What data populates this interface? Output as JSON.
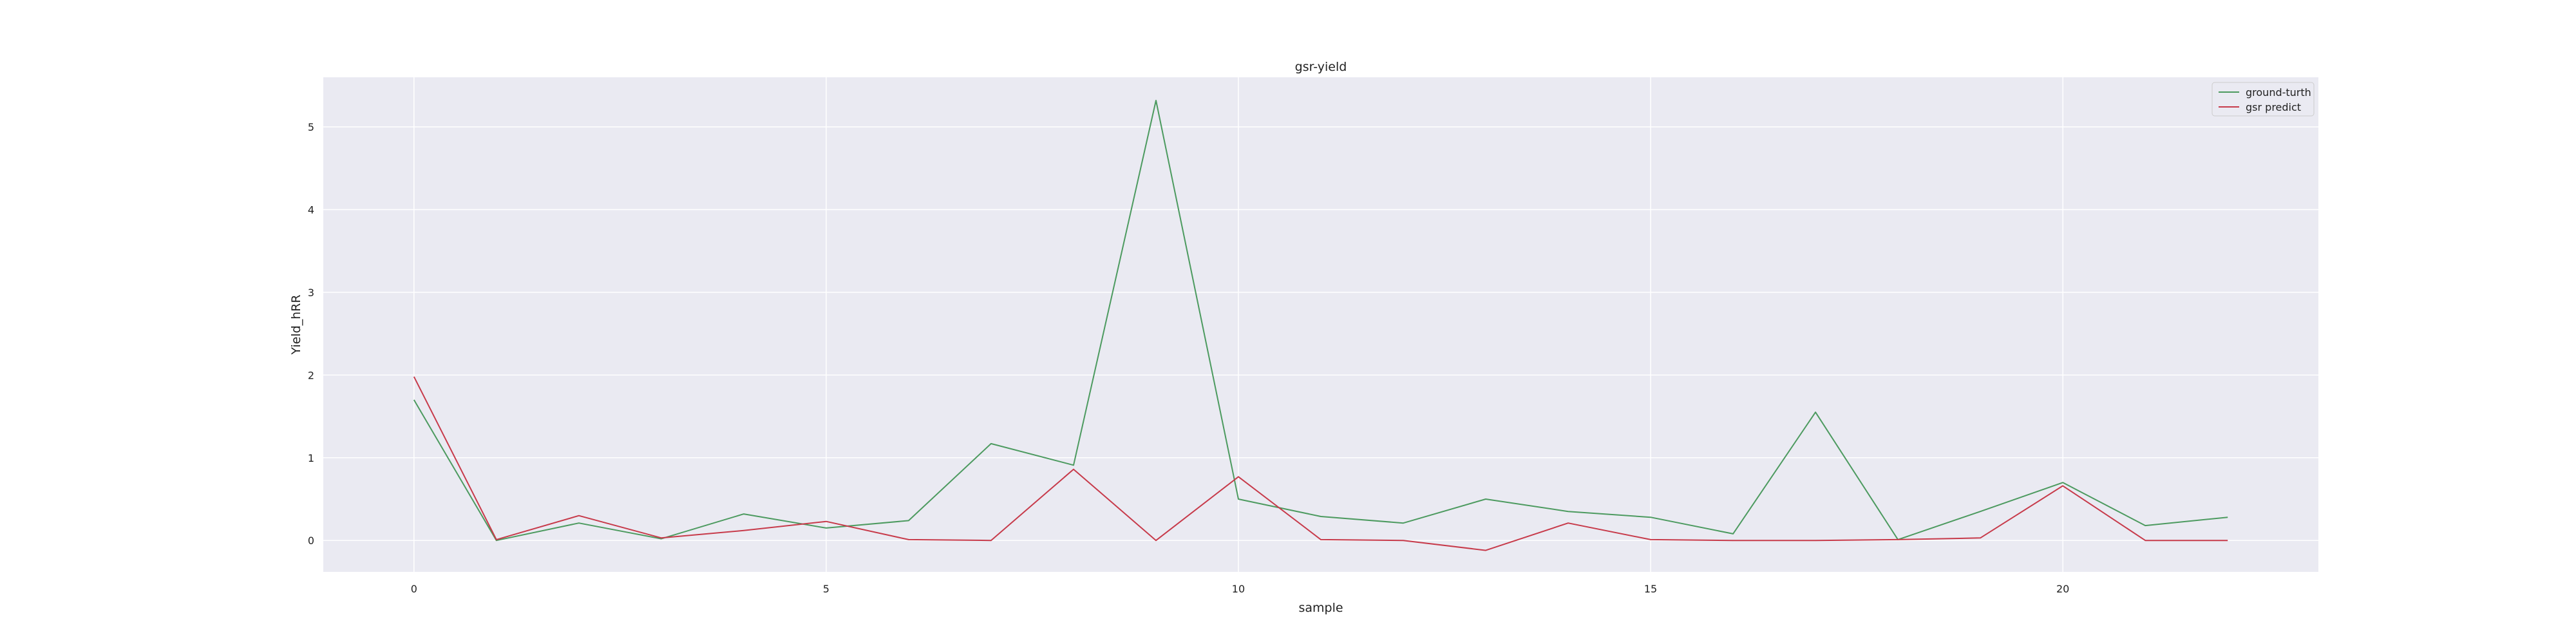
{
  "chart_data": {
    "type": "line",
    "title": "gsr-yield",
    "xlabel": "sample",
    "ylabel": "Yield_hRR",
    "xlim": [
      -1.1,
      23.1
    ],
    "ylim": [
      -0.38,
      5.6
    ],
    "xticks": [
      0,
      5,
      10,
      15,
      20
    ],
    "yticks": [
      0,
      1,
      2,
      3,
      4,
      5
    ],
    "grid": true,
    "legend_position": "top-right",
    "x": [
      0,
      1,
      2,
      3,
      4,
      5,
      6,
      7,
      8,
      9,
      10,
      11,
      12,
      13,
      14,
      15,
      16,
      17,
      18,
      19,
      20,
      21,
      22
    ],
    "series": [
      {
        "name": "ground-turth",
        "color": "#4c9a5f",
        "values": [
          1.7,
          0.0,
          0.21,
          0.02,
          0.32,
          0.15,
          0.24,
          1.17,
          0.91,
          5.32,
          0.5,
          0.29,
          0.21,
          0.5,
          0.35,
          0.28,
          0.08,
          1.55,
          0.01,
          0.35,
          0.7,
          0.18,
          0.28
        ]
      },
      {
        "name": "gsr predict",
        "color": "#c73a4a",
        "values": [
          1.98,
          0.01,
          0.3,
          0.03,
          0.12,
          0.23,
          0.01,
          0.0,
          0.86,
          0.0,
          0.77,
          0.01,
          0.0,
          -0.12,
          0.21,
          0.01,
          0.0,
          0.0,
          0.01,
          0.03,
          0.66,
          0.0,
          0.0
        ]
      }
    ]
  }
}
